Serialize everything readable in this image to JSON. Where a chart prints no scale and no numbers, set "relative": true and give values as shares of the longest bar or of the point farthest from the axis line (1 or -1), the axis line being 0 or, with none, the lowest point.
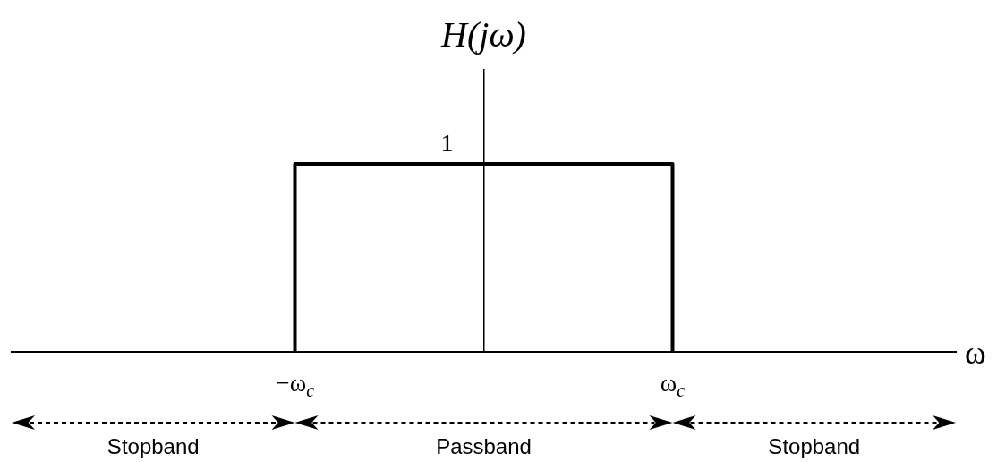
{
  "chart_data": {
    "type": "line",
    "ylabel": "H(jω)",
    "xlabel": "ω",
    "categories": [
      null,
      "−ω$_{c}$",
      null,
      "ω$_{c}$",
      null
    ],
    "series": [
      {
        "color": "#000000",
        "x": [
          "−ω$_{c}$",
          "−ω$_{c}$",
          "ω$_{c}$",
          "ω$_{c}$"
        ],
        "values": [
          0,
          1,
          1,
          0
        ]
      }
    ],
    "relative": true,
    "annotations": [
      {
        "text": "1",
        "y": 1
      },
      "Stopband",
      "Passband",
      "Stopband"
    ],
    "legend": false,
    "marker": "none"
  }
}
